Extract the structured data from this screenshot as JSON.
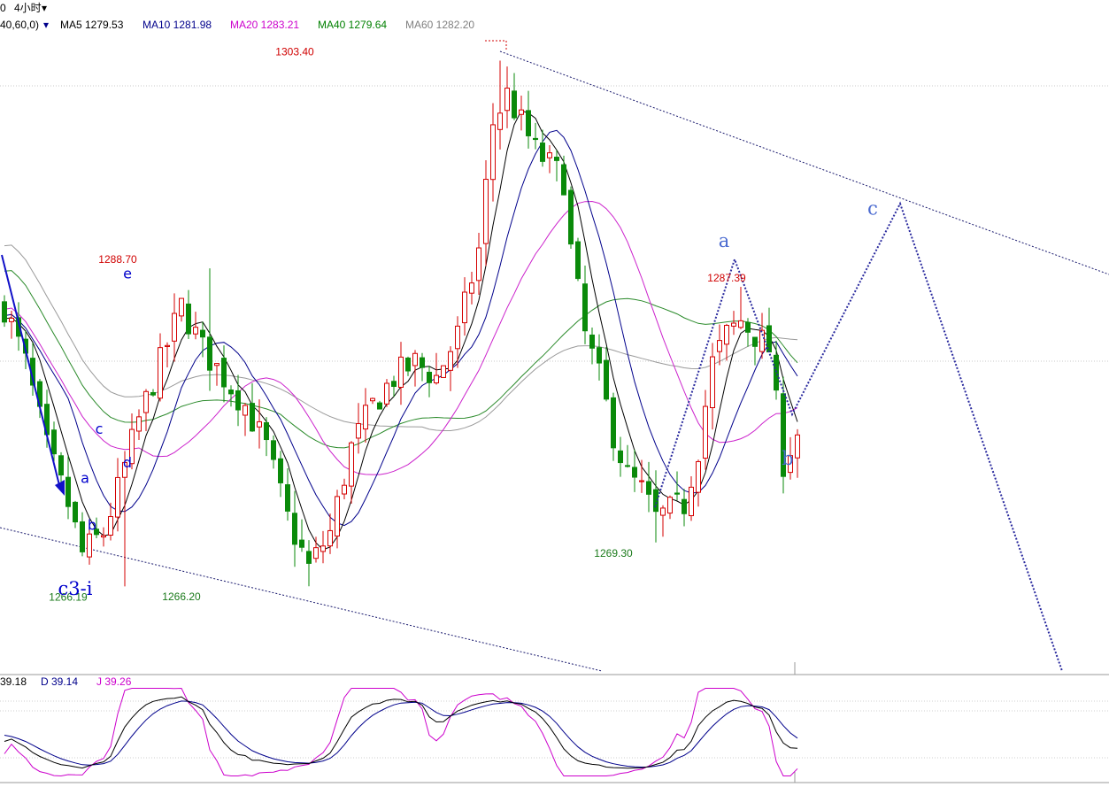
{
  "header": {
    "top_left": "0",
    "period": "4小时",
    "params": "40,60,0)",
    "ma": [
      {
        "label": "MA5 1279.53",
        "color": "#000000"
      },
      {
        "label": "MA10 1281.98",
        "color": "#00008b"
      },
      {
        "label": "MA20 1283.21",
        "color": "#cc00cc"
      },
      {
        "label": "MA40 1279.64",
        "color": "#008000"
      },
      {
        "label": "MA60 1282.20",
        "color": "#808080"
      }
    ]
  },
  "kdj_header": {
    "k": "39.18",
    "d": "D 39.14",
    "j": "J 39.26"
  },
  "price_labels": [
    {
      "text": "1303.40",
      "color": "#d00000",
      "x": 41,
      "y": 1303.4
    },
    {
      "text": "1288.70",
      "color": "#d00000",
      "x": 16,
      "y": 1288.7
    },
    {
      "text": "1287.39",
      "color": "#d00000",
      "x": 102,
      "y": 1287.39
    },
    {
      "text": "1269.30",
      "color": "#1a7a1a",
      "x": 86,
      "y": 1269.3
    },
    {
      "text": "1266.20",
      "color": "#1a7a1a",
      "x": 25,
      "y": 1266.2
    },
    {
      "text": "1266.19",
      "color": "#1a7a1a",
      "x": 9,
      "y": 1266.19
    }
  ],
  "wave_labels": [
    {
      "text": "a",
      "x": 11,
      "y": 1273.5
    },
    {
      "text": "b",
      "x": 12,
      "y": 1270.2
    },
    {
      "text": "c",
      "x": 13,
      "y": 1277.0
    },
    {
      "text": "d",
      "x": 17,
      "y": 1274.6
    },
    {
      "text": "e",
      "x": 17,
      "y": 1288.0
    },
    {
      "text": "c3-i",
      "x": 10,
      "y": 1265.6
    }
  ],
  "projection_labels": [
    {
      "text": "a",
      "x": 101,
      "y": 1290.2
    },
    {
      "text": "b",
      "x": 110,
      "y": 1274.8
    },
    {
      "text": "c",
      "x": 122,
      "y": 1292.5
    }
  ],
  "colors": {
    "up": "#d40000",
    "down": "#0a8a0a",
    "wave_text": "#0000cc",
    "projection": "#3a3aa8",
    "k": "#000000",
    "d": "#00008b",
    "j": "#cc00cc"
  },
  "chart_data": {
    "type": "candlestick",
    "ylim": [
      1260.2,
      1305.0
    ],
    "candles_count": 113,
    "ma_lines": [
      "MA5",
      "MA10",
      "MA20",
      "MA40",
      "MA60"
    ],
    "key_prices": {
      "high": 1303.4,
      "swing_high_1": 1288.7,
      "swing_high_2": 1287.39,
      "low_1": 1266.19,
      "low_2": 1266.2,
      "low_3": 1269.3
    },
    "kdj": {
      "K": 39.18,
      "D": 39.14,
      "J": 39.26
    }
  }
}
